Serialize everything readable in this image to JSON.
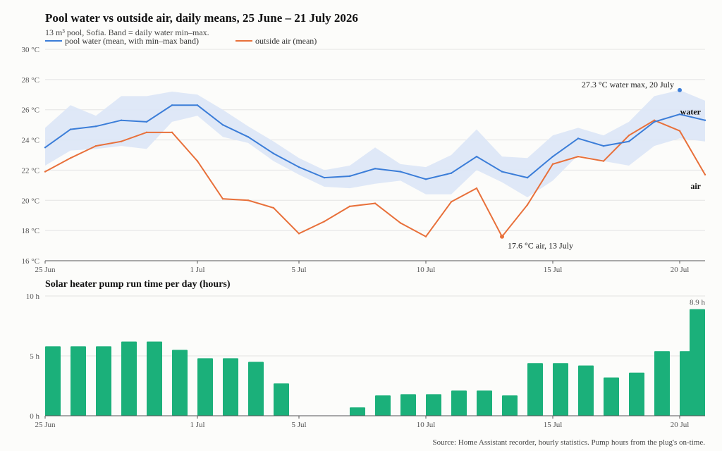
{
  "title": "Pool water vs outside air, daily means, 25 June – 21 July 2026",
  "subtitle": "13 m³ pool, Sofia. Band = daily water min–max.",
  "source": "Source: Home Assistant recorder, hourly statistics. Pump hours from the plug's on-time.",
  "colors": {
    "water": "#3b7dd8",
    "band": "#dce6f6",
    "air": "#e8703a",
    "bars": "#1bb07a"
  },
  "chart_data": [
    {
      "type": "line",
      "x": [
        "25 Jun",
        "26 Jun",
        "27 Jun",
        "28 Jun",
        "29 Jun",
        "30 Jun",
        "1 Jul",
        "2 Jul",
        "3 Jul",
        "4 Jul",
        "5 Jul",
        "6 Jul",
        "7 Jul",
        "8 Jul",
        "9 Jul",
        "10 Jul",
        "11 Jul",
        "12 Jul",
        "13 Jul",
        "14 Jul",
        "15 Jul",
        "16 Jul",
        "17 Jul",
        "18 Jul",
        "19 Jul",
        "20 Jul",
        "21 Jul"
      ],
      "series": [
        {
          "name": "pool water (mean, with min–max band)",
          "end_label": "water",
          "values": [
            23.5,
            24.7,
            24.9,
            25.3,
            25.2,
            26.3,
            26.3,
            25.0,
            24.2,
            23.1,
            22.2,
            21.5,
            21.6,
            22.1,
            21.9,
            21.4,
            21.8,
            22.9,
            21.9,
            21.5,
            22.9,
            24.1,
            23.6,
            23.9,
            25.2,
            25.7,
            25.3
          ],
          "band_min": [
            22.3,
            23.3,
            23.4,
            23.6,
            23.4,
            25.2,
            25.6,
            24.2,
            23.8,
            22.6,
            21.7,
            20.9,
            20.8,
            21.1,
            21.3,
            20.4,
            20.4,
            22.0,
            21.2,
            20.2,
            21.3,
            23.0,
            22.6,
            22.3,
            23.6,
            24.1,
            23.9
          ],
          "band_max": [
            24.8,
            26.3,
            25.6,
            26.9,
            26.9,
            27.2,
            27.0,
            26.0,
            24.9,
            23.9,
            22.8,
            22.0,
            22.3,
            23.5,
            22.4,
            22.2,
            23.0,
            24.7,
            22.9,
            22.8,
            24.3,
            24.8,
            24.3,
            25.2,
            26.9,
            27.3,
            26.6
          ]
        },
        {
          "name": "outside air (mean)",
          "end_label": "air",
          "values": [
            21.9,
            22.8,
            23.6,
            23.9,
            24.5,
            24.5,
            22.6,
            20.1,
            20.0,
            19.5,
            17.8,
            18.6,
            19.6,
            19.8,
            18.5,
            17.6,
            19.9,
            20.8,
            17.6,
            19.7,
            22.4,
            22.9,
            22.6,
            24.3,
            25.3,
            24.6,
            21.7
          ]
        }
      ],
      "annotations": [
        {
          "text": "27.3 °C water max, 20 July",
          "x": "20 Jul",
          "y": 27.3
        },
        {
          "text": "17.6 °C air, 13 July",
          "x": "13 Jul",
          "y": 17.6
        }
      ],
      "ylim": [
        16,
        30
      ],
      "yticks": [
        "16 °C",
        "18 °C",
        "20 °C",
        "22 °C",
        "24 °C",
        "26 °C",
        "28 °C",
        "30 °C"
      ],
      "xticks": [
        "25 Jun",
        "1 Jul",
        "5 Jul",
        "10 Jul",
        "15 Jul",
        "20 Jul"
      ],
      "grid": true,
      "legend": "top-left"
    },
    {
      "type": "bar",
      "title": "Solar heater pump run time per day (hours)",
      "categories": [
        "25 Jun",
        "26 Jun",
        "27 Jun",
        "28 Jun",
        "29 Jun",
        "30 Jun",
        "1 Jul",
        "2 Jul",
        "3 Jul",
        "4 Jul",
        "5 Jul",
        "6 Jul",
        "7 Jul",
        "8 Jul",
        "9 Jul",
        "10 Jul",
        "11 Jul",
        "12 Jul",
        "13 Jul",
        "14 Jul",
        "15 Jul",
        "16 Jul",
        "17 Jul",
        "18 Jul",
        "19 Jul",
        "20 Jul",
        "21 Jul"
      ],
      "values": [
        5.8,
        5.8,
        5.8,
        6.2,
        6.2,
        5.5,
        4.8,
        4.8,
        4.5,
        2.7,
        0,
        0,
        0.7,
        1.7,
        1.8,
        1.8,
        2.1,
        2.1,
        1.7,
        4.4,
        4.4,
        4.2,
        3.2,
        3.6,
        5.4,
        5.4,
        8.9
      ],
      "value_labels": [
        {
          "category": "21 Jul",
          "text": "8.9 h"
        }
      ],
      "ylim": [
        0,
        10
      ],
      "yticks": [
        "0 h",
        "5 h",
        "10 h"
      ],
      "xticks": [
        "25 Jun",
        "1 Jul",
        "5 Jul",
        "10 Jul",
        "15 Jul",
        "20 Jul"
      ],
      "grid": true
    }
  ]
}
